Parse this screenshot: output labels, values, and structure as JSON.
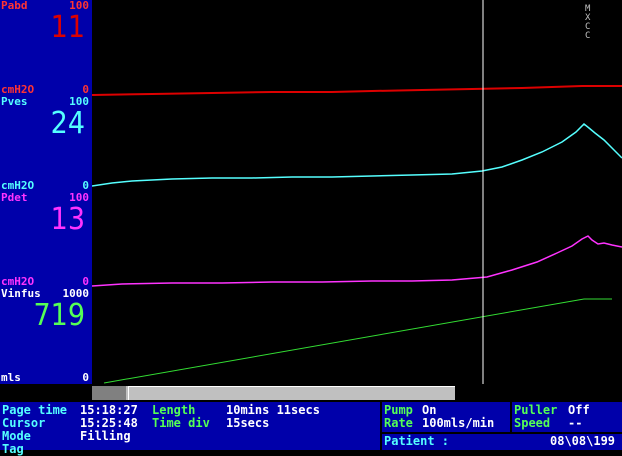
{
  "channels": [
    {
      "name": "Pabd",
      "max": "100",
      "value": "11",
      "unit": "cmH2O",
      "min": "0",
      "color": "#dd0000",
      "value_color": "#dd0000",
      "label_color": "#ff3333"
    },
    {
      "name": "Pves",
      "max": "100",
      "value": "24",
      "unit": "cmH2O",
      "min": "0",
      "color": "#55ffff",
      "value_color": "#55ffff",
      "label_color": "#55ffff"
    },
    {
      "name": "Pdet",
      "max": "100",
      "value": "13",
      "unit": "cmH2O",
      "min": "0",
      "color": "#ff33ff",
      "value_color": "#ff33ff",
      "label_color": "#ff33ff"
    },
    {
      "name": "Vinfus",
      "max": "1000",
      "value": "719",
      "unit": "mls",
      "min": "0",
      "color": "#33dd33",
      "value_color": "#55ff55",
      "label_color": "#ffffff"
    }
  ],
  "markers": [
    "M",
    "X",
    "C",
    "C"
  ],
  "status": {
    "page_time_label": "Page time",
    "page_time": "15:18:27",
    "length_label": "Length",
    "length": "10mins 11secs",
    "cursor_label": "Cursor",
    "cursor": "15:25:48",
    "time_div_label": "Time div",
    "time_div": "15secs",
    "mode_label": "Mode",
    "mode": "Filling",
    "tag_label": "Tag",
    "pump_label": "Pump",
    "pump": "On",
    "rate_label": "Rate",
    "rate": "100mls/min",
    "puller_label": "Puller",
    "puller": "Off",
    "speed_label": "Speed",
    "speed": "--",
    "patient_label": "Patient :",
    "date": "08\\08\\199"
  },
  "colors": {
    "panel": "#0000aa",
    "plot_bg": "#000000",
    "cursor_line": "#ffffff"
  }
}
